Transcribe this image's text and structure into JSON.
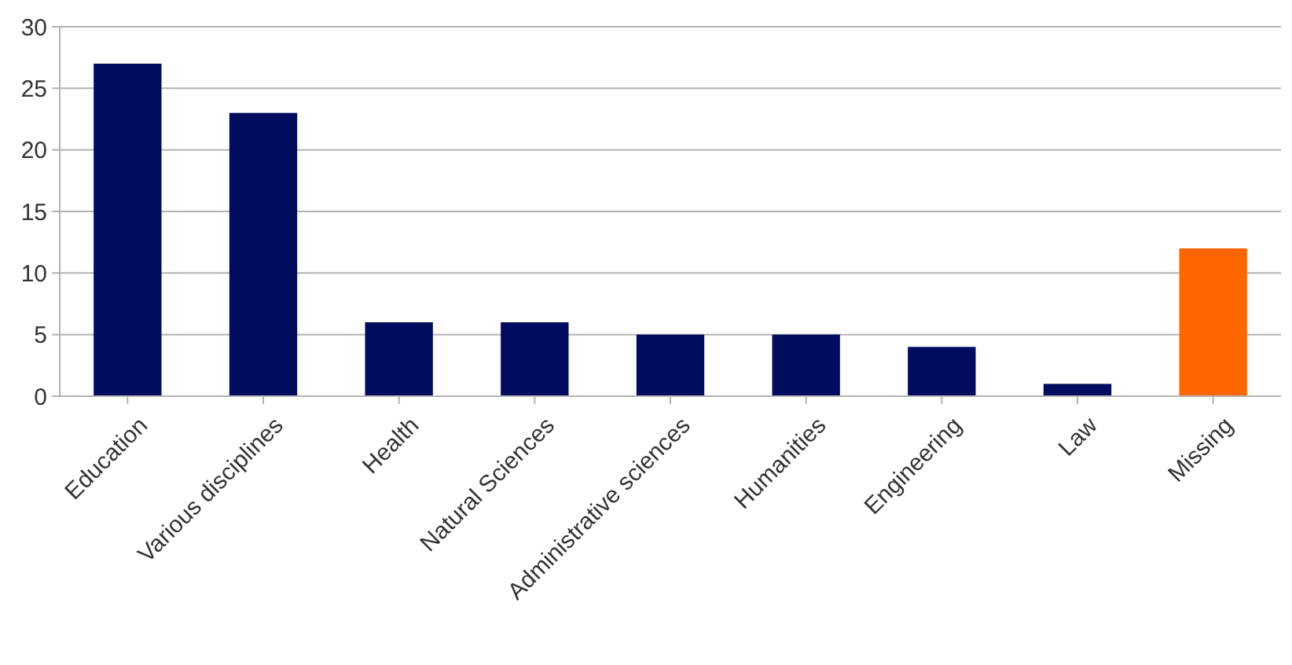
{
  "chart_data": {
    "type": "bar",
    "categories": [
      "Education",
      "Various disciplines",
      "Health",
      "Natural Sciences",
      "Administrative sciences",
      "Humanities",
      "Engineering",
      "Law",
      "Missing"
    ],
    "values": [
      27,
      23,
      6,
      6,
      5,
      5,
      4,
      1,
      12
    ],
    "colors": [
      "#000c5e",
      "#000c5e",
      "#000c5e",
      "#000c5e",
      "#000c5e",
      "#000c5e",
      "#000c5e",
      "#000c5e",
      "#ff6600"
    ],
    "ylim": [
      0,
      30
    ],
    "yticks": [
      0,
      5,
      10,
      15,
      20,
      25,
      30
    ],
    "grid": "y"
  }
}
